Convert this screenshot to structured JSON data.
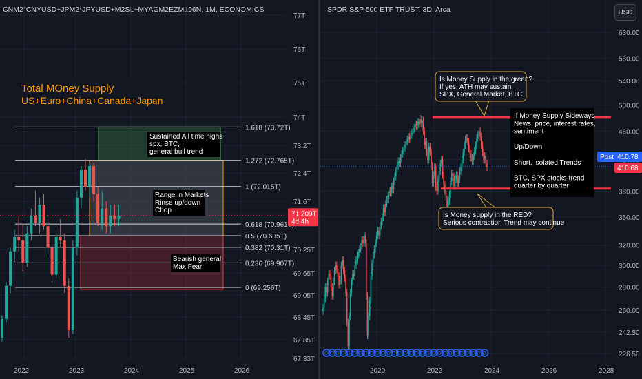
{
  "left": {
    "title": "CNM2*CNYUSD+JPM2*JPYUSD+M2SL+MYAGM2EZM196N, 1M, ECONOMICS",
    "headline": [
      "Total MOney Supply",
      "US+Euro+China+Canada+Japan"
    ],
    "price_tag": [
      "71.209T",
      "4d 4h"
    ],
    "fib_levels": [
      {
        "ratio": 1.618,
        "label": "1.618 (73.72T)"
      },
      {
        "ratio": 1.272,
        "label": "1.272 (72.765T)"
      },
      {
        "ratio": 1.0,
        "label": "1 (72.015T)"
      },
      {
        "ratio": 0.618,
        "label": "0.618 (70.961T)"
      },
      {
        "ratio": 0.5,
        "label": "0.5 (70.635T)"
      },
      {
        "ratio": 0.382,
        "label": "0.382 (70.31T)"
      },
      {
        "ratio": 0.236,
        "label": "0.236 (69.907T)"
      },
      {
        "ratio": 0,
        "label": "0 (69.256T)"
      }
    ],
    "notes": [
      {
        "id": "sustained",
        "lines": [
          "Sustained All time highs",
          "spx, BTC,",
          "general bull trend"
        ]
      },
      {
        "id": "range",
        "lines": [
          "Range in Markets",
          "Rinse up/down",
          "Chop"
        ]
      },
      {
        "id": "bearish",
        "lines": [
          "Bearish general",
          "Max Fear"
        ]
      }
    ],
    "colors": {
      "up": "#26a69a",
      "down": "#ef5350",
      "headline": "#ff9800",
      "price_tag": "#f23645"
    }
  },
  "right": {
    "title": "SPDR S&P 500 ETF TRUST, 3D, Arca",
    "currency_button": "USD",
    "post_tag": [
      "Post",
      "410.78"
    ],
    "price_tag": "410.68",
    "callouts": [
      {
        "id": "green",
        "lines": [
          "Is Money Supply in the green?",
          "If yes, ATH may sustain",
          "SPX, General Market, BTC"
        ]
      },
      {
        "id": "red",
        "lines": [
          "Is Money supply in the RED?",
          "Serious contraction Trend may continue"
        ]
      }
    ],
    "side_notes": [
      "If Money Supply Sideways",
      "News, price, interest rates,",
      "sentiment",
      "",
      "Up/Down",
      "",
      "Short, isolated Trends",
      "",
      "BTC, SPX stocks trend",
      "quarter by quarter"
    ],
    "dividend_marker": "D",
    "colors": {
      "up": "#26a69a",
      "down": "#ef5350",
      "resistance": "#f23645",
      "post": "#2962ff",
      "dividend": "#2962ff"
    }
  },
  "chart_data": [
    {
      "type": "candlestick",
      "title": "CNM2*CNYUSD+JPM2*JPYUSD+M2SL+MYAGM2EZM196N, 1M, ECONOMICS",
      "x_ticks": [
        "2022",
        "2023",
        "2024",
        "2025",
        "2026"
      ],
      "y_ticks": [
        "77T",
        "76T",
        "75T",
        "74T",
        "73.2T",
        "72.4T",
        "71.6T",
        "70.25T",
        "69.65T",
        "69.05T",
        "68.45T",
        "67.85T",
        "67.33T"
      ],
      "ylim": [
        67.33,
        77
      ],
      "last_value": 71.209,
      "fib_retracement": {
        "low": 69.256,
        "high": 72.015,
        "levels": [
          0,
          0.236,
          0.382,
          0.5,
          0.618,
          1,
          1.272,
          1.618
        ]
      },
      "candles": [
        {
          "o": 67.9,
          "h": 68.5,
          "l": 67.8,
          "c": 68.4
        },
        {
          "o": 68.4,
          "h": 69.4,
          "l": 68.3,
          "c": 69.3
        },
        {
          "o": 69.3,
          "h": 70.3,
          "l": 69.1,
          "c": 70.2
        },
        {
          "o": 70.2,
          "h": 70.8,
          "l": 69.9,
          "c": 70.6
        },
        {
          "o": 70.6,
          "h": 71.2,
          "l": 70.2,
          "c": 70.5
        },
        {
          "o": 70.5,
          "h": 71.0,
          "l": 69.7,
          "c": 69.9
        },
        {
          "o": 69.9,
          "h": 70.9,
          "l": 69.8,
          "c": 70.7
        },
        {
          "o": 70.7,
          "h": 71.4,
          "l": 70.5,
          "c": 71.2
        },
        {
          "o": 71.2,
          "h": 71.9,
          "l": 70.9,
          "c": 71.0
        },
        {
          "o": 71.0,
          "h": 71.7,
          "l": 70.7,
          "c": 71.5
        },
        {
          "o": 71.5,
          "h": 71.8,
          "l": 70.8,
          "c": 70.9
        },
        {
          "o": 70.9,
          "h": 71.1,
          "l": 70.1,
          "c": 70.3
        },
        {
          "o": 70.3,
          "h": 70.6,
          "l": 69.4,
          "c": 69.6
        },
        {
          "o": 69.6,
          "h": 70.8,
          "l": 69.5,
          "c": 70.6
        },
        {
          "o": 70.6,
          "h": 71.1,
          "l": 70.3,
          "c": 70.5
        },
        {
          "o": 70.5,
          "h": 70.7,
          "l": 69.1,
          "c": 69.3
        },
        {
          "o": 69.3,
          "h": 69.5,
          "l": 67.9,
          "c": 68.1
        },
        {
          "o": 68.1,
          "h": 70.5,
          "l": 68.0,
          "c": 70.3
        },
        {
          "o": 70.3,
          "h": 71.9,
          "l": 70.1,
          "c": 71.7
        },
        {
          "o": 71.7,
          "h": 72.6,
          "l": 71.4,
          "c": 72.5
        },
        {
          "o": 72.5,
          "h": 72.8,
          "l": 71.9,
          "c": 72.0
        },
        {
          "o": 72.0,
          "h": 72.7,
          "l": 71.7,
          "c": 72.6
        },
        {
          "o": 72.6,
          "h": 72.7,
          "l": 71.6,
          "c": 71.8
        },
        {
          "o": 71.8,
          "h": 72.0,
          "l": 70.9,
          "c": 71.0
        },
        {
          "o": 71.0,
          "h": 71.9,
          "l": 70.8,
          "c": 71.4
        },
        {
          "o": 71.4,
          "h": 71.6,
          "l": 70.7,
          "c": 70.9
        },
        {
          "o": 70.9,
          "h": 71.5,
          "l": 70.7,
          "c": 71.2
        },
        {
          "o": 71.2,
          "h": 71.5,
          "l": 70.9,
          "c": 71.1
        },
        {
          "o": 71.1,
          "h": 71.5,
          "l": 70.9,
          "c": 71.2
        }
      ]
    },
    {
      "type": "candlestick",
      "title": "SPDR S&P 500 ETF TRUST, 3D, Arca",
      "x_ticks": [
        "2020",
        "2022",
        "2024",
        "2026",
        "2028"
      ],
      "y_ticks": [
        "630.00",
        "580.00",
        "540.00",
        "500.00",
        "460.00",
        "420.00",
        "380.00",
        "350.00",
        "320.00",
        "300.00",
        "280.00",
        "260.00",
        "242.50",
        "226.50"
      ],
      "y_scale": "log",
      "last_value": 410.68,
      "post_value": 410.78,
      "resistance": 481,
      "support": 383,
      "closes": [
        262,
        270,
        280,
        275,
        285,
        292,
        290,
        280,
        272,
        285,
        295,
        300,
        296,
        290,
        282,
        286,
        300,
        305,
        295,
        288,
        275,
        250,
        232,
        255,
        275,
        285,
        292,
        290,
        300,
        305,
        310,
        312,
        316,
        318,
        325,
        322,
        330,
        322,
        272,
        240,
        255,
        268,
        290,
        302,
        310,
        316,
        322,
        330,
        335,
        330,
        340,
        345,
        350,
        360,
        355,
        365,
        370,
        375,
        380,
        378,
        386,
        382,
        392,
        398,
        405,
        412,
        418,
        415,
        422,
        428,
        432,
        436,
        440,
        445,
        448,
        452,
        448,
        455,
        458,
        462,
        465,
        470,
        468,
        474,
        470,
        478,
        472,
        476,
        460,
        440,
        445,
        430,
        420,
        438,
        430,
        412,
        390,
        400,
        410,
        385,
        380,
        395,
        405,
        415,
        420,
        400,
        388,
        380,
        370,
        360,
        368,
        376,
        392,
        402,
        398,
        386,
        395,
        400,
        390,
        395,
        405,
        410,
        420,
        430,
        440,
        448,
        450,
        445,
        435,
        428,
        422,
        418,
        425,
        432,
        440,
        450,
        455,
        460,
        452,
        440,
        430,
        420,
        425,
        415,
        410
      ]
    }
  ]
}
